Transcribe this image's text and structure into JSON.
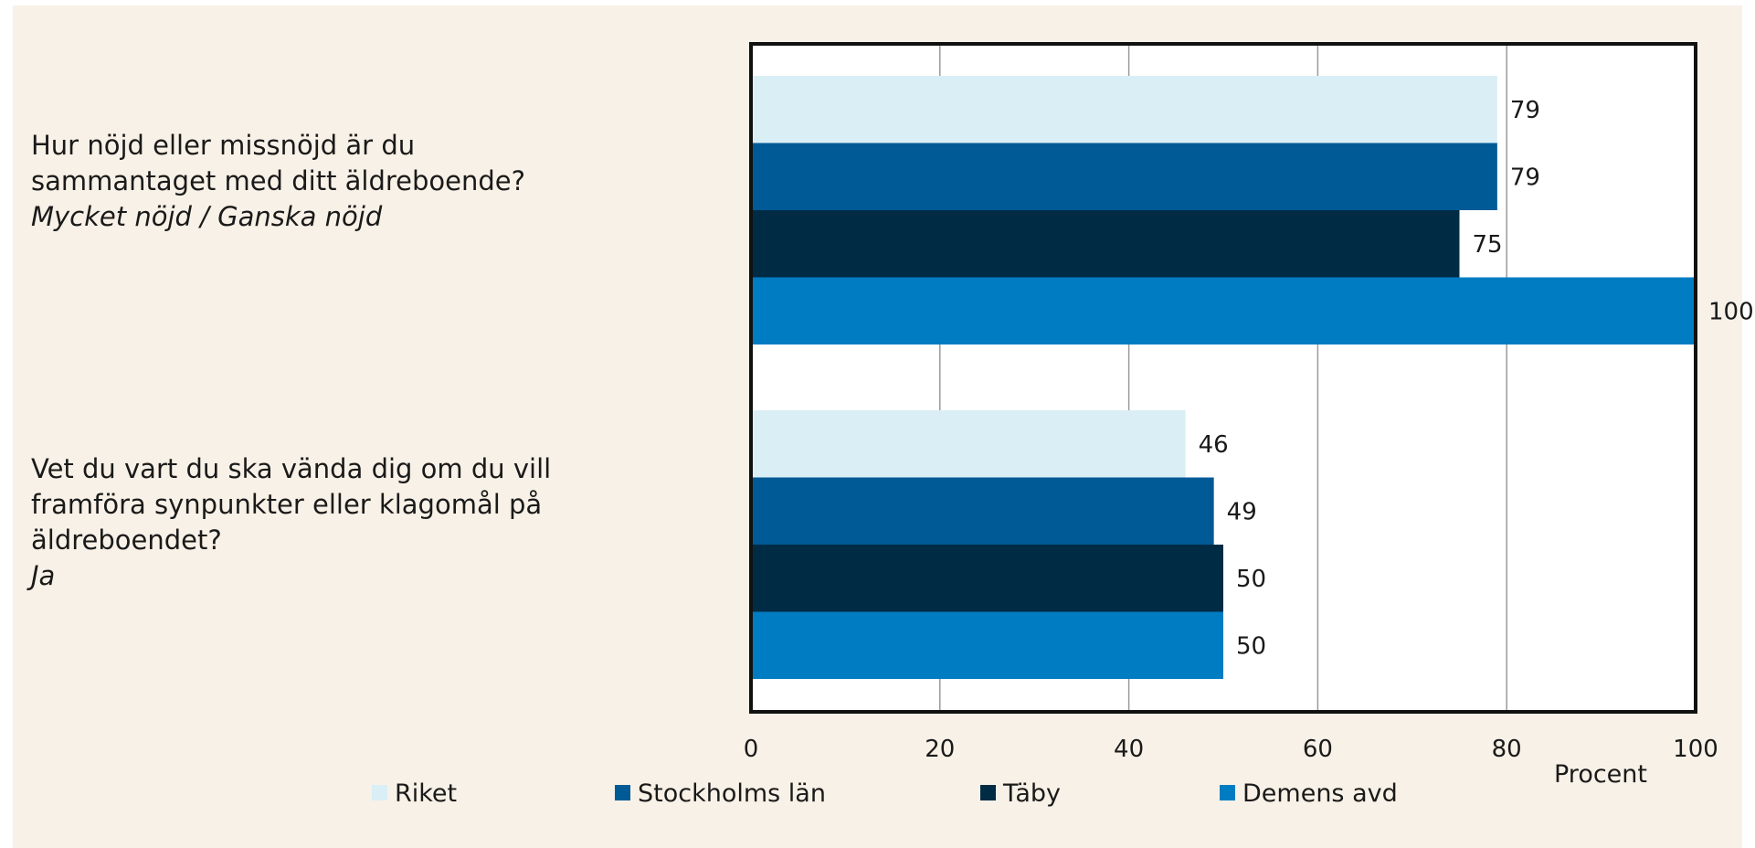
{
  "chart_data": {
    "type": "bar",
    "orientation": "horizontal",
    "categories": [
      {
        "lines": [
          "Hur nöjd eller missnöjd är du",
          "sammantaget med ditt äldreboende?"
        ],
        "answer": "Mycket nöjd / Ganska nöjd"
      },
      {
        "lines": [
          "Vet du vart du ska vända dig om du vill",
          "framföra synpunkter eller klagomål på",
          "äldreboendet?"
        ],
        "answer": "Ja"
      }
    ],
    "series": [
      {
        "name": "Riket",
        "color": "#daeef6",
        "values": [
          79,
          46
        ]
      },
      {
        "name": "Stockholms län",
        "color": "#005a96",
        "values": [
          79,
          49
        ]
      },
      {
        "name": "Täby",
        "color": "#002b45",
        "values": [
          75,
          50
        ]
      },
      {
        "name": "Demens avd",
        "color": "#007cc3",
        "values": [
          100,
          50
        ]
      }
    ],
    "xlim": [
      0,
      100
    ],
    "xticks": [
      0,
      20,
      40,
      60,
      80,
      100
    ],
    "xlabel": "Procent",
    "grid": true,
    "legend_position": "bottom"
  }
}
